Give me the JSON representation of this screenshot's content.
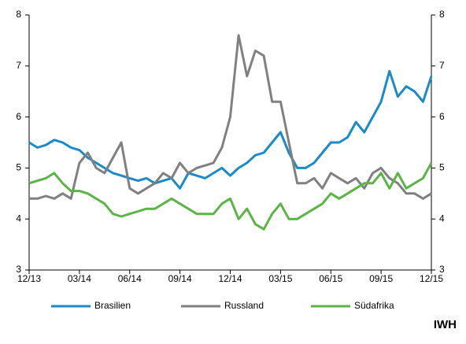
{
  "chart_data": {
    "type": "line",
    "categories": [
      "12/13",
      null,
      null,
      null,
      null,
      null,
      "03/14",
      null,
      null,
      null,
      null,
      null,
      "06/14",
      null,
      null,
      null,
      null,
      null,
      "09/14",
      null,
      null,
      null,
      null,
      null,
      "12/14",
      null,
      null,
      null,
      null,
      null,
      "03/15",
      null,
      null,
      null,
      null,
      null,
      "06/15",
      null,
      null,
      null,
      null,
      null,
      "09/15",
      null,
      null,
      null,
      null,
      null,
      "12/15"
    ],
    "series": [
      {
        "name": "Brasilien",
        "color": "#1a8ac8",
        "values": [
          5.5,
          5.4,
          5.45,
          5.55,
          5.5,
          5.4,
          5.35,
          5.2,
          5.1,
          5.0,
          4.9,
          4.85,
          4.8,
          4.75,
          4.8,
          4.7,
          4.75,
          4.8,
          4.6,
          4.9,
          4.85,
          4.8,
          4.9,
          5.0,
          4.85,
          5.0,
          5.1,
          5.25,
          5.3,
          5.5,
          5.7,
          5.3,
          5.0,
          5.0,
          5.1,
          5.3,
          5.5,
          5.5,
          5.6,
          5.9,
          5.7,
          6.0,
          6.3,
          6.9,
          6.4,
          6.6,
          6.5,
          6.3,
          6.8
        ]
      },
      {
        "name": "Russland",
        "color": "#808080",
        "values": [
          4.4,
          4.4,
          4.45,
          4.4,
          4.5,
          4.4,
          5.1,
          5.3,
          5.0,
          4.9,
          5.2,
          5.5,
          4.6,
          4.5,
          4.6,
          4.7,
          4.9,
          4.8,
          5.1,
          4.9,
          5.0,
          5.05,
          5.1,
          5.4,
          6.0,
          7.6,
          6.8,
          7.3,
          7.2,
          6.3,
          6.3,
          5.5,
          4.7,
          4.7,
          4.8,
          4.6,
          4.9,
          4.8,
          4.7,
          4.8,
          4.6,
          4.9,
          5.0,
          4.8,
          4.7,
          4.5,
          4.5,
          4.4,
          4.5
        ]
      },
      {
        "name": "Südafrika",
        "color": "#5cb346",
        "values": [
          4.7,
          4.75,
          4.8,
          4.9,
          4.7,
          4.55,
          4.55,
          4.5,
          4.4,
          4.3,
          4.1,
          4.05,
          4.1,
          4.15,
          4.2,
          4.2,
          4.3,
          4.4,
          4.3,
          4.2,
          4.1,
          4.1,
          4.1,
          4.3,
          4.4,
          4.0,
          4.2,
          3.9,
          3.8,
          4.1,
          4.3,
          4.0,
          4.0,
          4.1,
          4.2,
          4.3,
          4.5,
          4.4,
          4.5,
          4.6,
          4.7,
          4.7,
          4.9,
          4.6,
          4.9,
          4.6,
          4.7,
          4.8,
          5.1
        ]
      }
    ],
    "ylim": [
      3,
      8
    ],
    "yticks": [
      3,
      4,
      5,
      6,
      7,
      8
    ],
    "y2lim": [
      3,
      8
    ],
    "y2ticks": [
      3,
      4,
      5,
      6,
      7,
      8
    ],
    "grid": false,
    "legend": "bottom",
    "source": "IWH"
  }
}
